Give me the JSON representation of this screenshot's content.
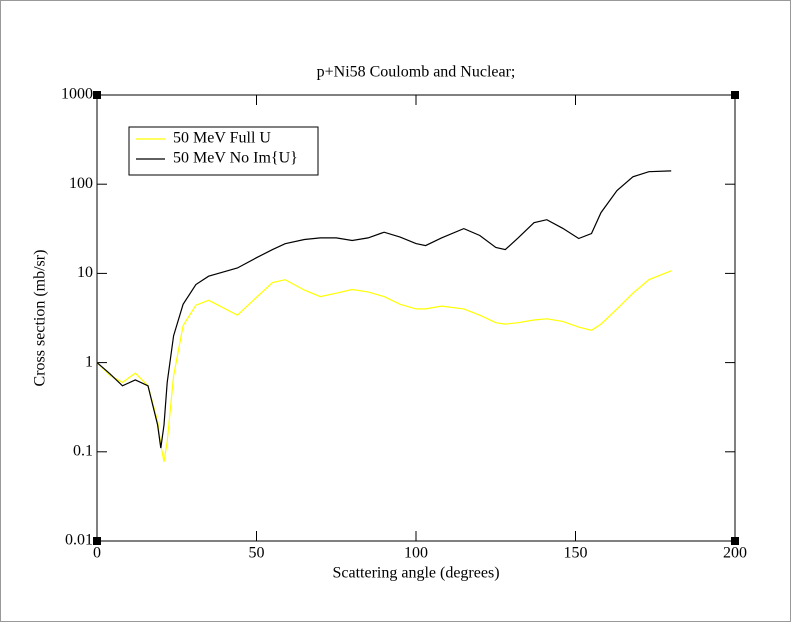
{
  "chart_data": {
    "type": "line",
    "title": "p+Ni58 Coulomb and Nuclear;",
    "x_label": "Scattering angle (degrees)",
    "y_label": "Cross section (mb/sr)",
    "x": [
      0,
      4,
      8,
      12,
      16,
      19,
      20,
      21,
      22,
      24,
      27,
      31,
      35,
      38,
      44,
      50,
      55,
      59,
      65,
      70,
      75,
      80,
      85,
      90,
      95,
      100,
      103,
      108,
      115,
      120,
      125,
      128,
      132,
      137,
      141,
      146,
      151,
      155,
      158,
      163,
      168,
      173,
      180
    ],
    "series": [
      {
        "name": "50 MeV Full U",
        "color": "#ffff00",
        "values": [
          1,
          0.72,
          0.6,
          0.76,
          0.55,
          0.22,
          0.12,
          0.077,
          0.13,
          0.71,
          2.6,
          4.4,
          5,
          4.4,
          3.4,
          5.4,
          7.9,
          8.5,
          6.5,
          5.5,
          6,
          6.6,
          6.2,
          5.5,
          4.5,
          4.0,
          4.0,
          4.3,
          4.0,
          3.4,
          2.8,
          2.7,
          2.8,
          3.0,
          3.1,
          2.9,
          2.5,
          2.3,
          2.7,
          4,
          6,
          8.5,
          10.7
        ]
      },
      {
        "name": "50 MeV No Im{U}",
        "color": "#000000",
        "values": [
          1,
          0.75,
          0.55,
          0.64,
          0.55,
          0.2,
          0.11,
          0.2,
          0.6,
          2,
          4.5,
          7.5,
          9.3,
          10,
          11.5,
          15,
          18.5,
          21.5,
          24,
          25,
          25,
          23.4,
          25,
          29,
          25.5,
          21.6,
          20.5,
          25,
          31.8,
          26.6,
          19.5,
          18.5,
          25,
          37,
          40,
          32,
          24.6,
          28,
          48,
          85,
          121,
          138,
          141
        ]
      }
    ],
    "xlim": [
      0,
      200
    ],
    "xticks": [
      0,
      50,
      100,
      150,
      200
    ],
    "ylim": [
      0.01,
      1000
    ],
    "yticks": [
      0.01,
      0.1,
      1,
      10,
      100,
      1000
    ],
    "y_scale": "log",
    "legend": "upper left"
  }
}
